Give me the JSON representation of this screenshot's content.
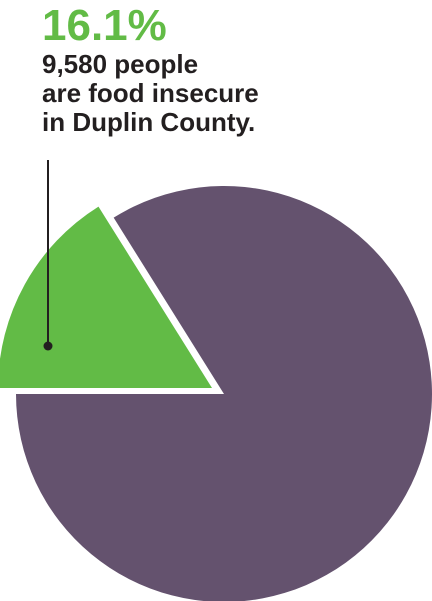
{
  "chart_data": {
    "type": "pie",
    "slices": [
      {
        "label": "16.1%",
        "value": 16.1,
        "color": "#62bb46"
      },
      {
        "value": 83.9,
        "color": "#64526e"
      }
    ],
    "annotation": {
      "value_text": "16.1%",
      "lines": [
        "9,580 people",
        "are food insecure",
        "in Duplin County."
      ]
    },
    "legend": "none",
    "grid": false
  },
  "colors": {
    "accent": "#62bb46",
    "pie_main": "#64526e",
    "text": "#231f20"
  }
}
